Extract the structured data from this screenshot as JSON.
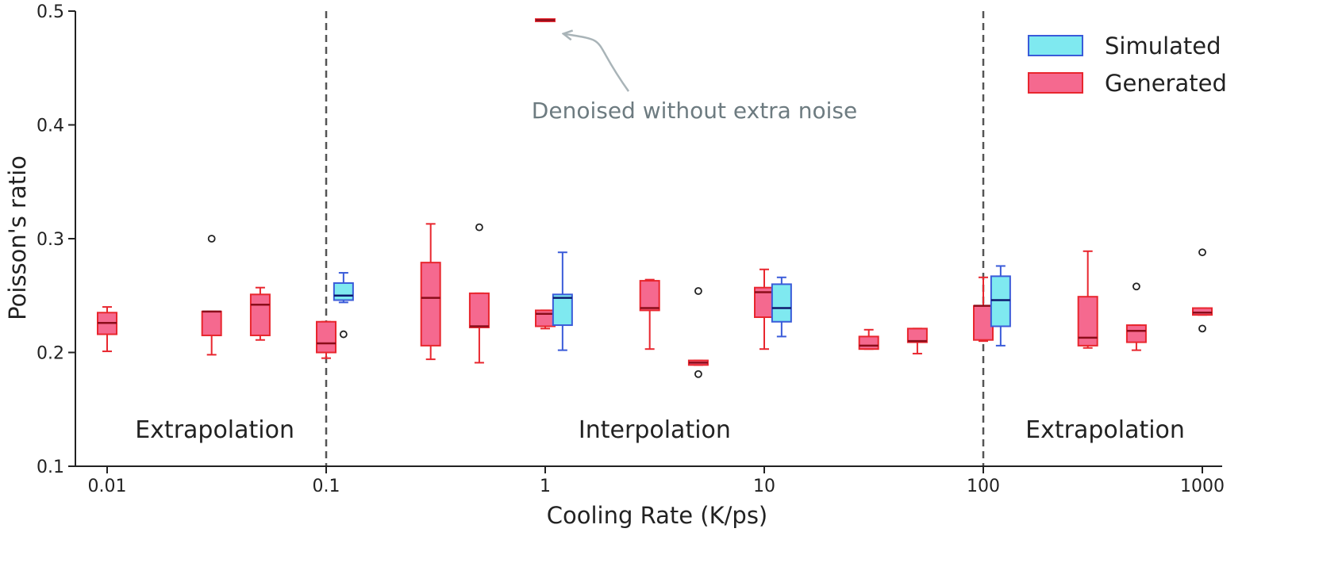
{
  "chart_data": {
    "type": "boxplot",
    "xlabel": "Cooling Rate (K/ps)",
    "ylabel": "Poisson's ratio",
    "x_scale": "log",
    "xlim": [
      0.0063,
      1350
    ],
    "ylim": [
      0.1,
      0.5
    ],
    "x_ticks": [
      {
        "value": 0.01,
        "label": "0.01"
      },
      {
        "value": 0.1,
        "label": "0.1"
      },
      {
        "value": 1,
        "label": "1"
      },
      {
        "value": 10,
        "label": "10"
      },
      {
        "value": 100,
        "label": "100"
      },
      {
        "value": 1000,
        "label": "1000"
      }
    ],
    "y_ticks": [
      {
        "value": 0.1,
        "label": "0.1"
      },
      {
        "value": 0.2,
        "label": "0.2"
      },
      {
        "value": 0.3,
        "label": "0.3"
      },
      {
        "value": 0.4,
        "label": "0.4"
      },
      {
        "value": 0.5,
        "label": "0.5"
      }
    ],
    "boundaries": [
      0.1,
      100
    ],
    "regions": [
      {
        "label": "Extrapolation",
        "x": 0.031
      },
      {
        "label": "Interpolation",
        "x": 3.16
      },
      {
        "label": "Extrapolation",
        "x": 360
      }
    ],
    "legend": {
      "position": "top-right",
      "entries": [
        {
          "name": "Simulated",
          "fill": "#7fe9f0",
          "stroke": "#3a5bd9"
        },
        {
          "name": "Generated",
          "fill": "#f5698f",
          "stroke": "#e8262e"
        }
      ]
    },
    "annotation": {
      "text": "Denoised without extra noise",
      "x": 4.8,
      "y": 0.41,
      "points_to": {
        "x": 1.22,
        "y": 0.48
      }
    },
    "series": [
      {
        "name": "Generated",
        "fill": "#f5698f",
        "stroke": "#e8262e",
        "median_color": "#8b0d1a",
        "boxes": [
          {
            "x": 0.01,
            "whislo": 0.201,
            "q1": 0.216,
            "med": 0.226,
            "q3": 0.235,
            "whishi": 0.24,
            "fliers": []
          },
          {
            "x": 0.03,
            "whislo": 0.198,
            "q1": 0.215,
            "med": 0.236,
            "q3": 0.236,
            "whishi": 0.236,
            "fliers": [
              0.3
            ]
          },
          {
            "x": 0.05,
            "whislo": 0.211,
            "q1": 0.215,
            "med": 0.242,
            "q3": 0.251,
            "whishi": 0.257,
            "fliers": []
          },
          {
            "x": 0.1,
            "whislo": 0.195,
            "q1": 0.2,
            "med": 0.208,
            "q3": 0.227,
            "whishi": 0.227,
            "fliers": []
          },
          {
            "x": 0.3,
            "whislo": 0.194,
            "q1": 0.206,
            "med": 0.248,
            "q3": 0.279,
            "whishi": 0.313,
            "fliers": []
          },
          {
            "x": 0.5,
            "whislo": 0.191,
            "q1": 0.222,
            "med": 0.223,
            "q3": 0.252,
            "whishi": 0.252,
            "fliers": [
              0.31
            ]
          },
          {
            "x": 1,
            "whislo": 0.221,
            "q1": 0.223,
            "med": 0.234,
            "q3": 0.237,
            "whishi": 0.237,
            "fliers": []
          },
          {
            "x": 1,
            "whislo": 0.491,
            "q1": 0.491,
            "med": 0.492,
            "q3": 0.493,
            "whishi": 0.493,
            "fliers": []
          },
          {
            "x": 3,
            "whislo": 0.203,
            "q1": 0.237,
            "med": 0.239,
            "q3": 0.263,
            "whishi": 0.264,
            "fliers": []
          },
          {
            "x": 5,
            "whislo": 0.189,
            "q1": 0.189,
            "med": 0.191,
            "q3": 0.193,
            "whishi": 0.193,
            "fliers": [
              0.254,
              0.181
            ]
          },
          {
            "x": 10,
            "whislo": 0.203,
            "q1": 0.231,
            "med": 0.253,
            "q3": 0.257,
            "whishi": 0.273,
            "fliers": []
          },
          {
            "x": 30,
            "whislo": 0.203,
            "q1": 0.203,
            "med": 0.206,
            "q3": 0.214,
            "whishi": 0.22,
            "fliers": []
          },
          {
            "x": 50,
            "whislo": 0.199,
            "q1": 0.209,
            "med": 0.21,
            "q3": 0.221,
            "whishi": 0.221,
            "fliers": []
          },
          {
            "x": 100,
            "whislo": 0.21,
            "q1": 0.211,
            "med": 0.241,
            "q3": 0.241,
            "whishi": 0.266,
            "fliers": []
          },
          {
            "x": 300,
            "whislo": 0.204,
            "q1": 0.206,
            "med": 0.213,
            "q3": 0.249,
            "whishi": 0.289,
            "fliers": []
          },
          {
            "x": 500,
            "whislo": 0.202,
            "q1": 0.209,
            "med": 0.219,
            "q3": 0.224,
            "whishi": 0.224,
            "fliers": [
              0.258
            ]
          },
          {
            "x": 1000,
            "whislo": 0.233,
            "q1": 0.233,
            "med": 0.235,
            "q3": 0.239,
            "whishi": 0.239,
            "fliers": [
              0.288,
              0.221
            ]
          }
        ]
      },
      {
        "name": "Simulated",
        "fill": "#7fe9f0",
        "stroke": "#3a5bd9",
        "median_color": "#0d1a6e",
        "boxes": [
          {
            "x": 0.12,
            "whislo": 0.244,
            "q1": 0.246,
            "med": 0.25,
            "q3": 0.261,
            "whishi": 0.27,
            "fliers": [
              0.216
            ]
          },
          {
            "x": 1.2,
            "whislo": 0.202,
            "q1": 0.224,
            "med": 0.248,
            "q3": 0.251,
            "whishi": 0.288,
            "fliers": []
          },
          {
            "x": 12,
            "whislo": 0.214,
            "q1": 0.227,
            "med": 0.239,
            "q3": 0.26,
            "whishi": 0.266,
            "fliers": []
          },
          {
            "x": 120,
            "whislo": 0.206,
            "q1": 0.223,
            "med": 0.246,
            "q3": 0.267,
            "whishi": 0.276,
            "fliers": []
          }
        ]
      }
    ]
  }
}
